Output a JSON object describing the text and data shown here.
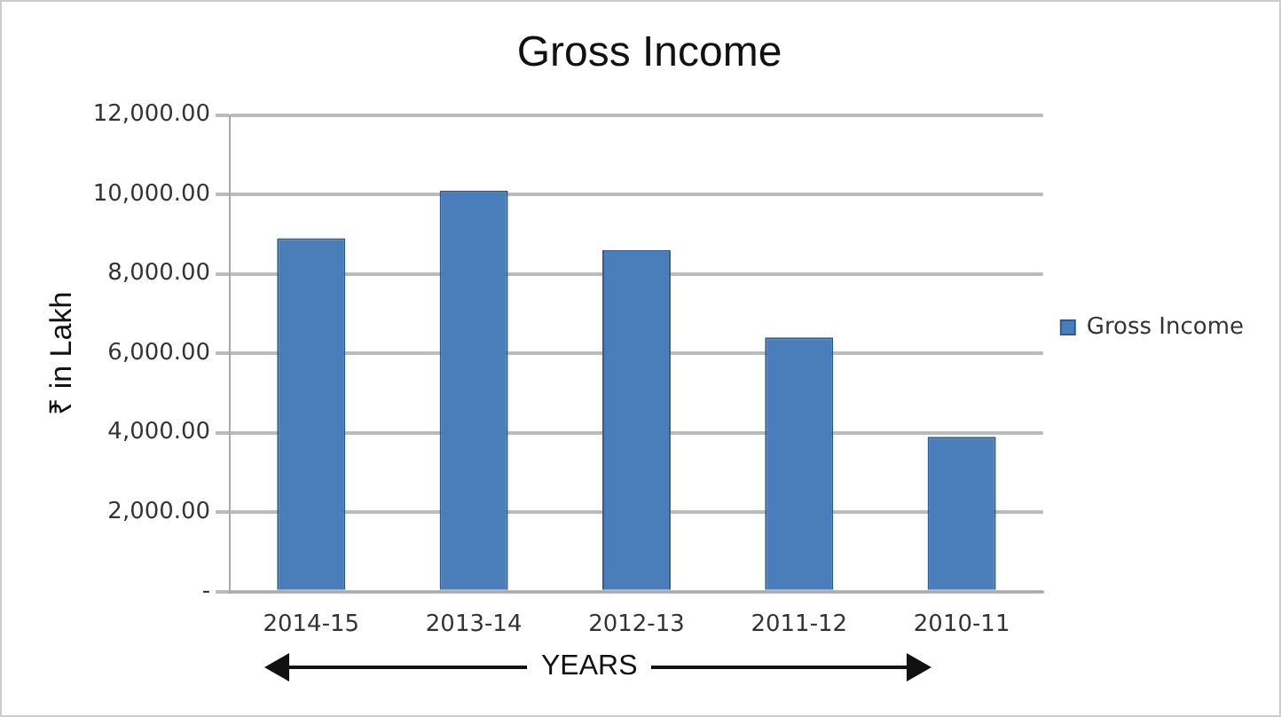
{
  "chart_data": {
    "type": "bar",
    "title": "Gross Income",
    "xlabel": "YEARS",
    "ylabel": "₹ in Lakh",
    "categories": [
      "2014-15",
      "2013-14",
      "2012-13",
      "2011-12",
      "2010-11"
    ],
    "series": [
      {
        "name": "Gross Income",
        "color": "#4a7ebb",
        "values": [
          8900,
          10100,
          8600,
          6400,
          3900
        ]
      }
    ],
    "ylim": [
      0,
      12000
    ],
    "yticks": [
      {
        "value": 0,
        "label": "-"
      },
      {
        "value": 2000,
        "label": "2,000.00"
      },
      {
        "value": 4000,
        "label": "4,000.00"
      },
      {
        "value": 6000,
        "label": "6,000.00"
      },
      {
        "value": 8000,
        "label": "8,000.00"
      },
      {
        "value": 10000,
        "label": "10,000.00"
      },
      {
        "value": 12000,
        "label": "12,000.00"
      }
    ],
    "grid": "y",
    "legend": "right"
  }
}
